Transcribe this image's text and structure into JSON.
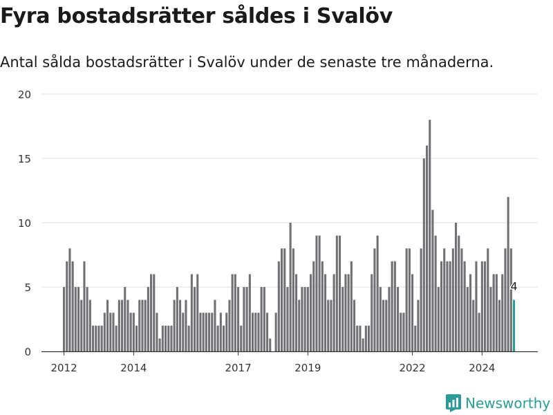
{
  "title": "Fyra bostadsrätter såldes i Svalöv",
  "subtitle": "Antal sålda bostadsrätter i Svalöv under de senaste tre månaderna.",
  "brand": "Newsworthy",
  "colors": {
    "bar": "#717074",
    "highlight": "#2a9c95",
    "grid": "#dddddd",
    "axis": "#333333"
  },
  "chart_data": {
    "type": "bar",
    "title": "Fyra bostadsrätter såldes i Svalöv",
    "xlabel": "",
    "ylabel": "",
    "ylim": [
      0,
      20
    ],
    "y_ticks": [
      0,
      5,
      10,
      15,
      20
    ],
    "x_ticks": [
      {
        "label": "2012",
        "date": "2012-01"
      },
      {
        "label": "2014",
        "date": "2014-01"
      },
      {
        "label": "2017",
        "date": "2017-01"
      },
      {
        "label": "2019",
        "date": "2019-01"
      },
      {
        "label": "2022",
        "date": "2022-01"
      },
      {
        "label": "2024",
        "date": "2024-01"
      }
    ],
    "highlight_label": "4",
    "grid": true,
    "series": [
      {
        "name": "",
        "points": [
          {
            "x": "2012-01",
            "y": 5
          },
          {
            "x": "2012-02",
            "y": 7
          },
          {
            "x": "2012-03",
            "y": 8
          },
          {
            "x": "2012-04",
            "y": 7
          },
          {
            "x": "2012-05",
            "y": 5
          },
          {
            "x": "2012-06",
            "y": 5
          },
          {
            "x": "2012-07",
            "y": 4
          },
          {
            "x": "2012-08",
            "y": 7
          },
          {
            "x": "2012-09",
            "y": 5
          },
          {
            "x": "2012-10",
            "y": 4
          },
          {
            "x": "2012-11",
            "y": 2
          },
          {
            "x": "2012-12",
            "y": 2
          },
          {
            "x": "2013-01",
            "y": 2
          },
          {
            "x": "2013-02",
            "y": 2
          },
          {
            "x": "2013-03",
            "y": 3
          },
          {
            "x": "2013-04",
            "y": 4
          },
          {
            "x": "2013-05",
            "y": 3
          },
          {
            "x": "2013-06",
            "y": 3
          },
          {
            "x": "2013-07",
            "y": 2
          },
          {
            "x": "2013-08",
            "y": 4
          },
          {
            "x": "2013-09",
            "y": 4
          },
          {
            "x": "2013-10",
            "y": 5
          },
          {
            "x": "2013-11",
            "y": 4
          },
          {
            "x": "2013-12",
            "y": 3
          },
          {
            "x": "2014-01",
            "y": 3
          },
          {
            "x": "2014-02",
            "y": 2
          },
          {
            "x": "2014-03",
            "y": 4
          },
          {
            "x": "2014-04",
            "y": 4
          },
          {
            "x": "2014-05",
            "y": 4
          },
          {
            "x": "2014-06",
            "y": 5
          },
          {
            "x": "2014-07",
            "y": 6
          },
          {
            "x": "2014-08",
            "y": 6
          },
          {
            "x": "2014-09",
            "y": 3
          },
          {
            "x": "2014-10",
            "y": 1
          },
          {
            "x": "2014-11",
            "y": 2
          },
          {
            "x": "2014-12",
            "y": 2
          },
          {
            "x": "2015-01",
            "y": 2
          },
          {
            "x": "2015-02",
            "y": 2
          },
          {
            "x": "2015-03",
            "y": 4
          },
          {
            "x": "2015-04",
            "y": 5
          },
          {
            "x": "2015-05",
            "y": 4
          },
          {
            "x": "2015-06",
            "y": 3
          },
          {
            "x": "2015-07",
            "y": 4
          },
          {
            "x": "2015-08",
            "y": 2
          },
          {
            "x": "2015-09",
            "y": 6
          },
          {
            "x": "2015-10",
            "y": 5
          },
          {
            "x": "2015-11",
            "y": 6
          },
          {
            "x": "2015-12",
            "y": 3
          },
          {
            "x": "2016-01",
            "y": 3
          },
          {
            "x": "2016-02",
            "y": 3
          },
          {
            "x": "2016-03",
            "y": 3
          },
          {
            "x": "2016-04",
            "y": 3
          },
          {
            "x": "2016-05",
            "y": 4
          },
          {
            "x": "2016-06",
            "y": 2
          },
          {
            "x": "2016-07",
            "y": 3
          },
          {
            "x": "2016-08",
            "y": 2
          },
          {
            "x": "2016-09",
            "y": 3
          },
          {
            "x": "2016-10",
            "y": 4
          },
          {
            "x": "2016-11",
            "y": 6
          },
          {
            "x": "2016-12",
            "y": 6
          },
          {
            "x": "2017-01",
            "y": 5
          },
          {
            "x": "2017-02",
            "y": 2
          },
          {
            "x": "2017-03",
            "y": 5
          },
          {
            "x": "2017-04",
            "y": 5
          },
          {
            "x": "2017-05",
            "y": 6
          },
          {
            "x": "2017-06",
            "y": 3
          },
          {
            "x": "2017-07",
            "y": 3
          },
          {
            "x": "2017-08",
            "y": 3
          },
          {
            "x": "2017-09",
            "y": 5
          },
          {
            "x": "2017-10",
            "y": 5
          },
          {
            "x": "2017-11",
            "y": 3
          },
          {
            "x": "2017-12",
            "y": 1
          },
          {
            "x": "2018-01",
            "y": 0
          },
          {
            "x": "2018-02",
            "y": 3
          },
          {
            "x": "2018-03",
            "y": 7
          },
          {
            "x": "2018-04",
            "y": 8
          },
          {
            "x": "2018-05",
            "y": 8
          },
          {
            "x": "2018-06",
            "y": 5
          },
          {
            "x": "2018-07",
            "y": 10
          },
          {
            "x": "2018-08",
            "y": 8
          },
          {
            "x": "2018-09",
            "y": 6
          },
          {
            "x": "2018-10",
            "y": 4
          },
          {
            "x": "2018-11",
            "y": 5
          },
          {
            "x": "2018-12",
            "y": 5
          },
          {
            "x": "2019-01",
            "y": 5
          },
          {
            "x": "2019-02",
            "y": 6
          },
          {
            "x": "2019-03",
            "y": 7
          },
          {
            "x": "2019-04",
            "y": 9
          },
          {
            "x": "2019-05",
            "y": 9
          },
          {
            "x": "2019-06",
            "y": 7
          },
          {
            "x": "2019-07",
            "y": 6
          },
          {
            "x": "2019-08",
            "y": 4
          },
          {
            "x": "2019-09",
            "y": 4
          },
          {
            "x": "2019-10",
            "y": 6
          },
          {
            "x": "2019-11",
            "y": 9
          },
          {
            "x": "2019-12",
            "y": 9
          },
          {
            "x": "2020-01",
            "y": 5
          },
          {
            "x": "2020-02",
            "y": 6
          },
          {
            "x": "2020-03",
            "y": 6
          },
          {
            "x": "2020-04",
            "y": 7
          },
          {
            "x": "2020-05",
            "y": 4
          },
          {
            "x": "2020-06",
            "y": 2
          },
          {
            "x": "2020-07",
            "y": 2
          },
          {
            "x": "2020-08",
            "y": 1
          },
          {
            "x": "2020-09",
            "y": 2
          },
          {
            "x": "2020-10",
            "y": 2
          },
          {
            "x": "2020-11",
            "y": 6
          },
          {
            "x": "2020-12",
            "y": 8
          },
          {
            "x": "2021-01",
            "y": 9
          },
          {
            "x": "2021-02",
            "y": 5
          },
          {
            "x": "2021-03",
            "y": 4
          },
          {
            "x": "2021-04",
            "y": 4
          },
          {
            "x": "2021-05",
            "y": 5
          },
          {
            "x": "2021-06",
            "y": 7
          },
          {
            "x": "2021-07",
            "y": 7
          },
          {
            "x": "2021-08",
            "y": 5
          },
          {
            "x": "2021-09",
            "y": 3
          },
          {
            "x": "2021-10",
            "y": 3
          },
          {
            "x": "2021-11",
            "y": 8
          },
          {
            "x": "2021-12",
            "y": 8
          },
          {
            "x": "2022-01",
            "y": 6
          },
          {
            "x": "2022-02",
            "y": 2
          },
          {
            "x": "2022-03",
            "y": 4
          },
          {
            "x": "2022-04",
            "y": 8
          },
          {
            "x": "2022-05",
            "y": 15
          },
          {
            "x": "2022-06",
            "y": 16
          },
          {
            "x": "2022-07",
            "y": 18
          },
          {
            "x": "2022-08",
            "y": 11
          },
          {
            "x": "2022-09",
            "y": 9
          },
          {
            "x": "2022-10",
            "y": 5
          },
          {
            "x": "2022-11",
            "y": 7
          },
          {
            "x": "2022-12",
            "y": 8
          },
          {
            "x": "2023-01",
            "y": 7
          },
          {
            "x": "2023-02",
            "y": 7
          },
          {
            "x": "2023-03",
            "y": 8
          },
          {
            "x": "2023-04",
            "y": 10
          },
          {
            "x": "2023-05",
            "y": 9
          },
          {
            "x": "2023-06",
            "y": 8
          },
          {
            "x": "2023-07",
            "y": 7
          },
          {
            "x": "2023-08",
            "y": 5
          },
          {
            "x": "2023-09",
            "y": 6
          },
          {
            "x": "2023-10",
            "y": 4
          },
          {
            "x": "2023-11",
            "y": 7
          },
          {
            "x": "2023-12",
            "y": 3
          },
          {
            "x": "2024-01",
            "y": 7
          },
          {
            "x": "2024-02",
            "y": 7
          },
          {
            "x": "2024-03",
            "y": 8
          },
          {
            "x": "2024-04",
            "y": 5
          },
          {
            "x": "2024-05",
            "y": 6
          },
          {
            "x": "2024-06",
            "y": 6
          },
          {
            "x": "2024-07",
            "y": 4
          },
          {
            "x": "2024-08",
            "y": 6
          },
          {
            "x": "2024-09",
            "y": 8
          },
          {
            "x": "2024-10",
            "y": 12
          },
          {
            "x": "2024-11",
            "y": 8
          },
          {
            "x": "2024-12",
            "y": 4
          }
        ]
      }
    ]
  }
}
